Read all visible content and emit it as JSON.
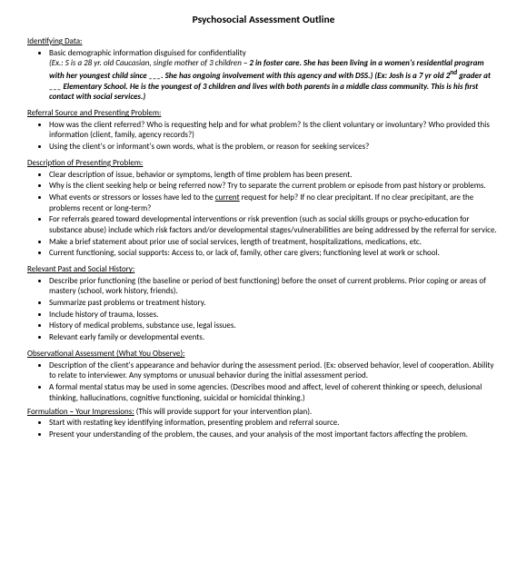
{
  "title": "Psychosocial Assessment Outline",
  "sections": [
    {
      "heading": "Identifying Data:",
      "items": [
        "Basic demographic information disguised for confidentiality<br><em>(Ex.: S is a 28 yr. old Caucasian, single mother of 3 children <strong>– 2 in foster care. She has been living in a women's residential program with her youngest child since ___. She has ongoing involvement with this agency and with DSS.) (Ex: Josh is a 7 yr old 2<sup>nd</sup> grader at ___ Elementary School. He is the youngest of 3 children and lives with both parents in a middle class community. This is his first contact with social services.)</strong></em>"
      ]
    },
    {
      "heading": "Referral Source and Presenting Problem:",
      "items": [
        "How was the client referred? Who is requesting help and for what problem? Is the client voluntary or involuntary? Who provided this information (client, family, agency records?)",
        "Using the client's or informant's own words, what is the problem, or reason for seeking services?"
      ]
    },
    {
      "heading": "Description of Presenting Problem:",
      "items": [
        "Clear description of issue, behavior or symptoms, length of time problem has been present.",
        "Why is the client seeking help or being referred now? Try to separate the current problem or episode from past history or problems.",
        "What events or stressors or losses have led to the <span class=\"u\">current</span> request for help? If no clear precipitant. If no clear precipitant, are the problems recent or long-term?",
        "For referrals geared toward developmental interventions or risk prevention (such as social skills groups or psycho-education for substance abuse) include which risk factors and/or developmental stages/vulnerabilities are being addressed by the referral for service.",
        "Make a brief statement about prior use of social services, length of treatment, hospitalizations, medications, etc.",
        "Current functioning, social supports: Access to, or lack of, family, other care givers; functioning level at work or school."
      ]
    },
    {
      "heading": "Relevant Past and Social History:",
      "items": [
        "Describe prior functioning (the baseline or period of best functioning) before the onset of current problems. Prior coping or areas of mastery (school, work history, friends).",
        "Summarize past problems or treatment history.",
        "Include history of trauma, losses.",
        "History of medical problems, substance use, legal issues.",
        "Relevant early family or developmental events."
      ]
    },
    {
      "heading": "Observational Assessment (What You Observe):",
      "items": [
        "Description of the client's appearance and behavior during the assessment period. (Ex: observed behavior, level of cooperation. Ability to relate to interviewer. Any symptoms or unusual behavior during the initial assessment period.",
        "A formal mental status may be used in some agencies. (Describes mood and affect, level of coherent thinking or speech, delusional thinking, hallucinations, cognitive functioning, suicidal or homicidal thinking.)"
      ]
    },
    {
      "heading": "<span class=\"u\">Formulation <strong>–</strong> Your Impressions:</span> (This will provide support for your intervention plan).",
      "headingPlain": true,
      "items": [
        "Start with restating key identifying information, presenting problem and referral source.",
        "Present your understanding of the problem, the causes, and your analysis of the most important factors affecting the problem."
      ]
    }
  ]
}
